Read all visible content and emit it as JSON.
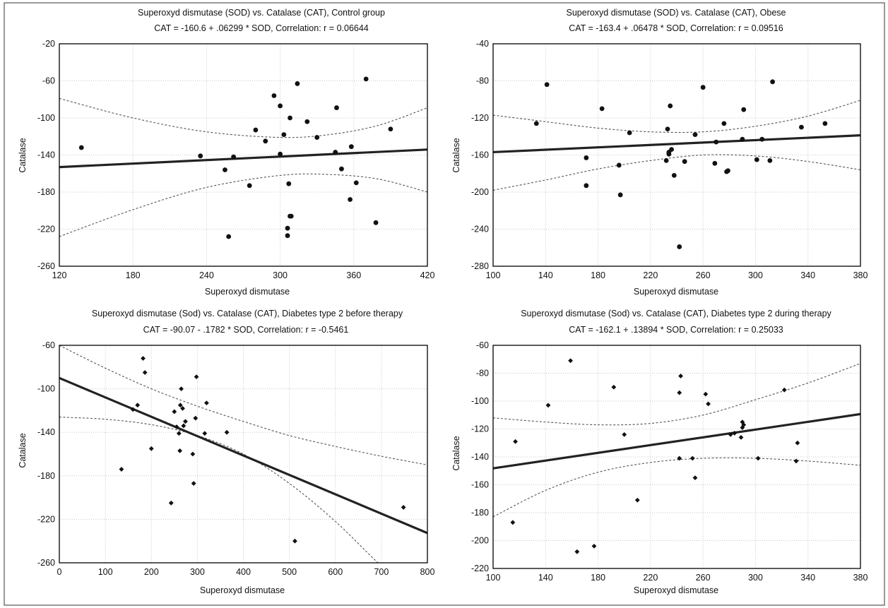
{
  "chart_data": [
    {
      "type": "scatter",
      "title": "Superoxyd dismutase (SOD) vs. Catalase (CAT), Control group",
      "subtitle": "CAT = -160.6 + .06299 * SOD,   Correlation: r = 0.06644",
      "xlabel": "Superoxyd dismutase",
      "ylabel": "Catalase",
      "xlim": [
        120,
        420
      ],
      "ylim": [
        -260,
        -20
      ],
      "xticks": [
        120,
        180,
        240,
        300,
        360,
        420
      ],
      "yticks": [
        -20,
        -60,
        -100,
        -140,
        -180,
        -220,
        -260
      ],
      "fit": {
        "intercept": -160.6,
        "slope": 0.06299
      },
      "band_upper": [
        [
          120,
          -79
        ],
        [
          180,
          -100
        ],
        [
          240,
          -115
        ],
        [
          300,
          -121
        ],
        [
          340,
          -118
        ],
        [
          380,
          -108
        ],
        [
          420,
          -89
        ]
      ],
      "band_lower": [
        [
          120,
          -228
        ],
        [
          180,
          -199
        ],
        [
          240,
          -175
        ],
        [
          300,
          -162
        ],
        [
          340,
          -161
        ],
        [
          380,
          -166
        ],
        [
          420,
          -180
        ]
      ],
      "grid": true,
      "x": [
        138,
        235,
        255,
        258,
        262,
        275,
        280,
        288,
        295,
        300,
        300,
        303,
        306,
        306,
        307,
        308,
        308,
        309,
        314,
        322,
        330,
        345,
        346,
        350,
        357,
        358,
        362,
        370,
        378,
        390
      ],
      "y": [
        -132,
        -141,
        -156,
        -228,
        -142,
        -173,
        -113,
        -125,
        -76,
        -139,
        -87,
        -118,
        -219,
        -227,
        -171,
        -100,
        -206,
        -206,
        -63,
        -104,
        -121,
        -137,
        -89,
        -155,
        -188,
        -131,
        -170,
        -58,
        -213,
        -112
      ]
    },
    {
      "type": "scatter",
      "title": "Superoxyd dismutase (SOD) vs. Catalase (CAT), Obese",
      "subtitle": "CAT = -163.4 + .06478 * SOD,  Correlation: r = 0.09516",
      "xlabel": "Superoxyd dismutase",
      "ylabel": "Catalase",
      "xlim": [
        100,
        380
      ],
      "ylim": [
        -280,
        -40
      ],
      "xticks": [
        100,
        140,
        180,
        220,
        260,
        300,
        340,
        380
      ],
      "yticks": [
        -40,
        -80,
        -120,
        -160,
        -200,
        -240,
        -280
      ],
      "fit": {
        "intercept": -163.4,
        "slope": 0.06478
      },
      "band_upper": [
        [
          100,
          -117
        ],
        [
          140,
          -124
        ],
        [
          180,
          -131
        ],
        [
          220,
          -135
        ],
        [
          260,
          -135
        ],
        [
          300,
          -129
        ],
        [
          340,
          -118
        ],
        [
          380,
          -101
        ]
      ],
      "band_lower": [
        [
          100,
          -198
        ],
        [
          140,
          -187
        ],
        [
          180,
          -175
        ],
        [
          220,
          -166
        ],
        [
          260,
          -160
        ],
        [
          300,
          -161
        ],
        [
          340,
          -167
        ],
        [
          380,
          -176
        ]
      ],
      "grid": true,
      "x": [
        133,
        141,
        171,
        171,
        183,
        196,
        197,
        204,
        232,
        233,
        234,
        234,
        235,
        236,
        238,
        242,
        246,
        254,
        260,
        269,
        270,
        276,
        278,
        279,
        290,
        291,
        301,
        305,
        311,
        313,
        335,
        353
      ],
      "y": [
        -126,
        -84,
        -163,
        -193,
        -110,
        -171,
        -203,
        -136,
        -166,
        -132,
        -159,
        -157,
        -107,
        -154,
        -182,
        -259,
        -167,
        -138,
        -87,
        -169,
        -146,
        -126,
        -178,
        -177,
        -143,
        -111,
        -165,
        -143,
        -166,
        -81,
        -130,
        -126
      ]
    },
    {
      "type": "scatter",
      "title": "Superoxyd dismutase (Sod) vs. Catalase (CAT), Diabetes type 2 before therapy",
      "subtitle": "CAT = -90.07 - .1782 * SOD,  Correlation: r = -0.5461",
      "xlabel": "Superoxyd dismutase",
      "ylabel": "Catalase",
      "xlim": [
        0,
        800
      ],
      "ylim": [
        -260,
        -60
      ],
      "xticks": [
        0,
        100,
        200,
        300,
        400,
        500,
        600,
        700,
        800
      ],
      "yticks": [
        -60,
        -100,
        -140,
        -180,
        -220,
        -260
      ],
      "fit": {
        "intercept": -90.07,
        "slope": -0.1782
      },
      "band_upper": [
        [
          0,
          -60
        ],
        [
          100,
          -81
        ],
        [
          200,
          -100
        ],
        [
          300,
          -116
        ],
        [
          400,
          -130
        ],
        [
          500,
          -143
        ],
        [
          600,
          -153
        ],
        [
          700,
          -162
        ],
        [
          800,
          -170
        ]
      ],
      "band_lower": [
        [
          0,
          -126
        ],
        [
          100,
          -128
        ],
        [
          200,
          -133
        ],
        [
          300,
          -143
        ],
        [
          400,
          -160
        ],
        [
          500,
          -187
        ],
        [
          600,
          -222
        ],
        [
          700,
          -263
        ],
        [
          800,
          -300
        ]
      ],
      "grid": true,
      "x": [
        135,
        160,
        170,
        182,
        186,
        200,
        243,
        250,
        255,
        260,
        262,
        263,
        265,
        268,
        270,
        274,
        290,
        292,
        296,
        298,
        316,
        320,
        364,
        512,
        748
      ],
      "y": [
        -174,
        -119,
        -115,
        -72,
        -85,
        -155,
        -205,
        -121,
        -135,
        -141,
        -157,
        -115,
        -100,
        -118,
        -134,
        -130,
        -160,
        -187,
        -127,
        -89,
        -141,
        -113,
        -140,
        -240,
        -209
      ]
    },
    {
      "type": "scatter",
      "title": "Superoxyd dismutase (Sod) vs. Catalase (CAT), Diabetes type 2 during therapy",
      "subtitle": "CAT = -162.1 + .13894 * SOD, Correlation: r = 0.25033",
      "xlabel": "Superoxyd dismutase",
      "ylabel": "Catalase",
      "xlim": [
        100,
        380
      ],
      "ylim": [
        -220,
        -60
      ],
      "xticks": [
        100,
        140,
        180,
        220,
        260,
        300,
        340,
        380
      ],
      "yticks": [
        -60,
        -80,
        -100,
        -120,
        -140,
        -160,
        -180,
        -200,
        -220
      ],
      "fit": {
        "intercept": -162.1,
        "slope": 0.13894
      },
      "band_upper": [
        [
          100,
          -112
        ],
        [
          140,
          -115
        ],
        [
          180,
          -117
        ],
        [
          220,
          -116
        ],
        [
          260,
          -110
        ],
        [
          300,
          -99
        ],
        [
          340,
          -87
        ],
        [
          380,
          -73
        ]
      ],
      "band_lower": [
        [
          100,
          -183
        ],
        [
          140,
          -164
        ],
        [
          180,
          -151
        ],
        [
          220,
          -144
        ],
        [
          260,
          -141
        ],
        [
          300,
          -141
        ],
        [
          340,
          -143
        ],
        [
          380,
          -146
        ]
      ],
      "grid": true,
      "x": [
        115,
        117,
        142,
        159,
        164,
        177,
        192,
        200,
        210,
        242,
        242,
        243,
        252,
        254,
        262,
        264,
        281,
        284,
        289,
        290,
        290,
        291,
        302,
        322,
        331,
        332
      ],
      "y": [
        -187,
        -129,
        -103,
        -71,
        -208,
        -204,
        -90,
        -124,
        -171,
        -141,
        -94,
        -82,
        -141,
        -155,
        -95,
        -102,
        -124,
        -123,
        -126,
        -115,
        -119,
        -117,
        -141,
        -92,
        -143,
        -130
      ]
    }
  ]
}
